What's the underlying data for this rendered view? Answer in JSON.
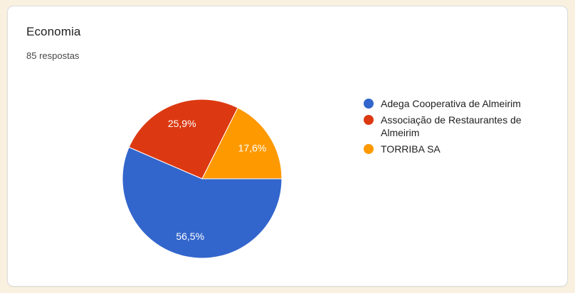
{
  "card": {
    "title": "Economia",
    "responses": "85 respostas"
  },
  "theme": {
    "page_background": "#f9f0e0",
    "card_background": "#ffffff",
    "card_border": "#dadce0",
    "title_color": "#202124",
    "subtitle_color": "#454746",
    "legend_text_color": "#212121",
    "slice_label_color": "#ffffff"
  },
  "chart_data": {
    "type": "pie",
    "title": "Economia",
    "subtitle": "85 respostas",
    "legend_position": "right",
    "start_angle_deg": 0,
    "direction": "clockwise",
    "slices": [
      {
        "label": "Adega Cooperativa de Almeirim",
        "percent": 56.5,
        "display": "56,5%",
        "color": "#3366cc"
      },
      {
        "label": "Associação de Restaurantes de Almeirim",
        "percent": 25.9,
        "display": "25,9%",
        "color": "#dc3912"
      },
      {
        "label": "TORRIBA SA",
        "percent": 17.6,
        "display": "17,6%",
        "color": "#ff9900"
      }
    ]
  }
}
